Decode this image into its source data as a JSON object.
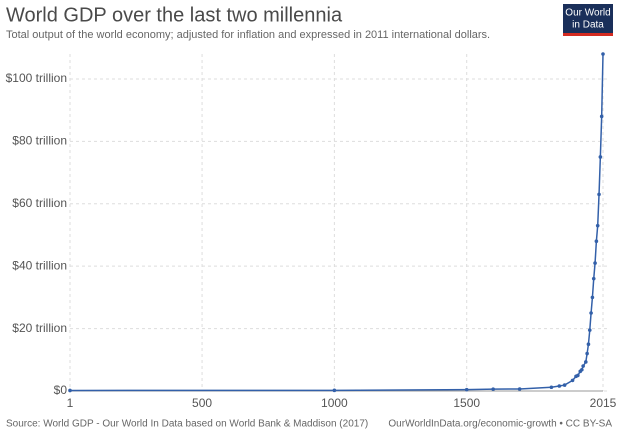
{
  "chart_data": {
    "type": "line",
    "title": "World GDP over the last two millennia",
    "subtitle": "Total output of the world economy; adjusted for inflation and expressed in 2011 international dollars.",
    "logo": {
      "line1": "Our World",
      "line2": "in Data"
    },
    "source": "Source: World GDP - Our World In Data based on World Bank & Maddison (2017)",
    "credit": "OurWorldInData.org/economic-growth • CC BY-SA",
    "x": [
      1,
      1000,
      1500,
      1600,
      1700,
      1820,
      1850,
      1870,
      1900,
      1913,
      1920,
      1929,
      1935,
      1940,
      1950,
      1955,
      1960,
      1965,
      1970,
      1975,
      1980,
      1985,
      1990,
      1995,
      2000,
      2005,
      2010,
      2015
    ],
    "values": [
      0.18,
      0.21,
      0.43,
      0.6,
      0.64,
      1.2,
      1.6,
      1.9,
      3.4,
      4.7,
      5.0,
      6.3,
      6.8,
      8.0,
      9.3,
      12,
      15,
      19.5,
      25,
      30,
      36,
      41,
      48,
      53,
      63,
      75,
      88,
      108
    ],
    "color": "#3360a9",
    "xlim": [
      1,
      2015
    ],
    "xticks": [
      1,
      500,
      1000,
      1500,
      2015
    ],
    "ylim": [
      0,
      108
    ],
    "yticks": [
      {
        "value": 0,
        "label": "$0"
      },
      {
        "value": 20,
        "label": "$20 trillion"
      },
      {
        "value": 40,
        "label": "$40 trillion"
      },
      {
        "value": 60,
        "label": "$60 trillion"
      },
      {
        "value": 80,
        "label": "$80 trillion"
      },
      {
        "value": 100,
        "label": "$100 trillion"
      }
    ],
    "grid": true
  }
}
